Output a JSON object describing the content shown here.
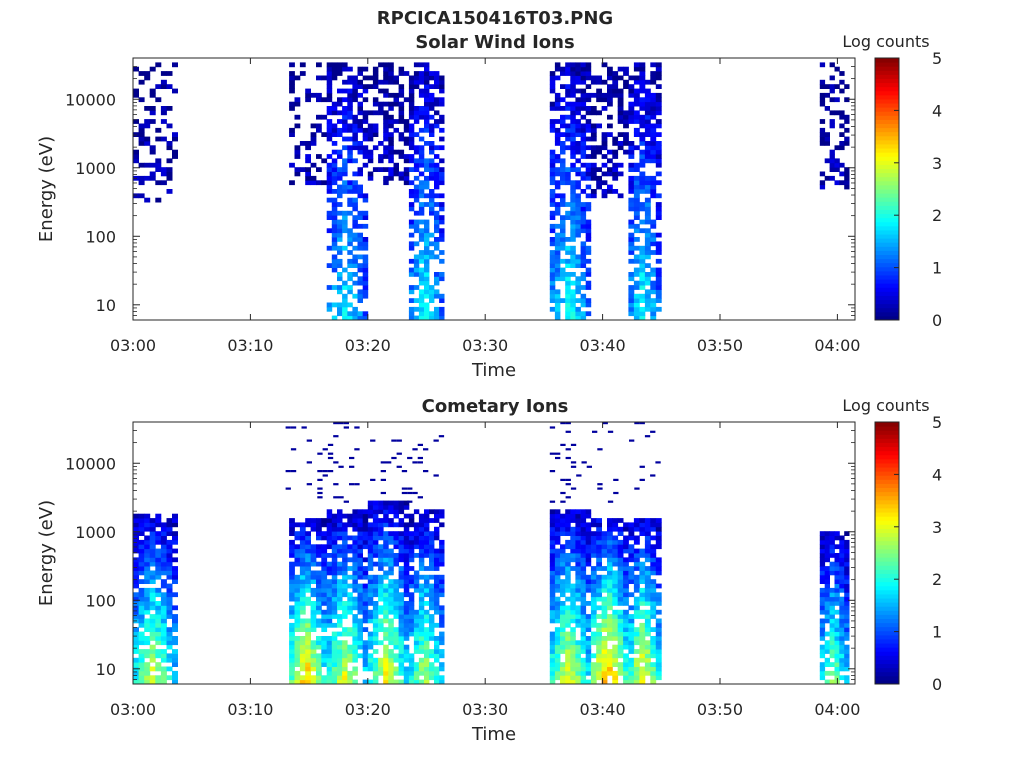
{
  "figure": {
    "title": "RPCICA150416T03.PNG"
  },
  "chart_data": [
    {
      "type": "heatmap",
      "title": "Solar Wind Ions",
      "xlabel": "Time",
      "ylabel": "Energy (eV)",
      "x_ticks": [
        "03:00",
        "03:10",
        "03:20",
        "03:30",
        "03:40",
        "03:50",
        "04:00"
      ],
      "x_range_minutes": [
        0,
        61.5
      ],
      "y_scale": "log",
      "y_ticks": [
        {
          "value": 10,
          "label": "10"
        },
        {
          "value": 100,
          "label": "100"
        },
        {
          "value": 1000,
          "label": "1000"
        },
        {
          "value": 10000,
          "label": "10000"
        }
      ],
      "ylim": [
        6,
        40000
      ],
      "colorbar": {
        "label": "Log counts",
        "range": [
          0,
          5
        ],
        "ticks": [
          "0",
          "1",
          "2",
          "3",
          "4",
          "5"
        ]
      },
      "bursts": [
        {
          "start": 0.0,
          "end": 3.8,
          "emin": 330,
          "emax": 30000,
          "peak": 0.3,
          "density": 0.35
        },
        {
          "start": 13.3,
          "end": 16.5,
          "emin": 600,
          "emax": 30000,
          "peak": 0.3,
          "density": 0.3
        },
        {
          "start": 16.5,
          "end": 20.0,
          "emin": 6,
          "emax": 30000,
          "peak": 1.9,
          "density": 0.6
        },
        {
          "start": 20.0,
          "end": 23.5,
          "emin": 600,
          "emax": 30000,
          "peak": 0.4,
          "density": 0.5
        },
        {
          "start": 23.5,
          "end": 26.5,
          "emin": 6,
          "emax": 30000,
          "peak": 2.0,
          "density": 0.65
        },
        {
          "start": 35.5,
          "end": 39.0,
          "emin": 6,
          "emax": 30000,
          "peak": 2.0,
          "density": 0.7
        },
        {
          "start": 39.0,
          "end": 42.2,
          "emin": 400,
          "emax": 30000,
          "peak": 0.4,
          "density": 0.5
        },
        {
          "start": 42.2,
          "end": 45.0,
          "emin": 6,
          "emax": 30000,
          "peak": 2.0,
          "density": 0.7
        },
        {
          "start": 58.5,
          "end": 61.0,
          "emin": 500,
          "emax": 30000,
          "peak": 0.3,
          "density": 0.35
        }
      ]
    },
    {
      "type": "heatmap",
      "title": "Cometary Ions",
      "xlabel": "Time",
      "ylabel": "Energy (eV)",
      "x_ticks": [
        "03:00",
        "03:10",
        "03:20",
        "03:30",
        "03:40",
        "03:50",
        "04:00"
      ],
      "x_range_minutes": [
        0,
        61.5
      ],
      "y_scale": "log",
      "y_ticks": [
        {
          "value": 10,
          "label": "10"
        },
        {
          "value": 100,
          "label": "100"
        },
        {
          "value": 1000,
          "label": "1000"
        },
        {
          "value": 10000,
          "label": "10000"
        }
      ],
      "ylim": [
        6,
        40000
      ],
      "colorbar": {
        "label": "Log counts",
        "range": [
          0,
          5
        ],
        "ticks": [
          "0",
          "1",
          "2",
          "3",
          "4",
          "5"
        ]
      },
      "bursts": [
        {
          "start": 0.0,
          "end": 3.8,
          "emin": 6,
          "emax": 1800,
          "peak": 3.0,
          "density": 0.85
        },
        {
          "start": 13.3,
          "end": 16.5,
          "emin": 6,
          "emax": 1500,
          "peak": 3.6,
          "density": 0.85
        },
        {
          "start": 16.5,
          "end": 20.0,
          "emin": 6,
          "emax": 2000,
          "peak": 3.1,
          "density": 0.8
        },
        {
          "start": 20.0,
          "end": 23.5,
          "emin": 6,
          "emax": 2500,
          "peak": 3.2,
          "density": 0.8
        },
        {
          "start": 23.5,
          "end": 26.5,
          "emin": 6,
          "emax": 2000,
          "peak": 2.9,
          "density": 0.75
        },
        {
          "start": 35.5,
          "end": 39.0,
          "emin": 6,
          "emax": 2000,
          "peak": 3.2,
          "density": 0.85
        },
        {
          "start": 39.0,
          "end": 42.2,
          "emin": 6,
          "emax": 1500,
          "peak": 3.9,
          "density": 0.85
        },
        {
          "start": 42.2,
          "end": 45.0,
          "emin": 6,
          "emax": 1500,
          "peak": 3.4,
          "density": 0.8
        },
        {
          "start": 58.5,
          "end": 61.0,
          "emin": 6,
          "emax": 900,
          "peak": 2.7,
          "density": 0.85
        }
      ],
      "sparse_high_energy": [
        {
          "start": 13.0,
          "end": 26.5,
          "emin": 2500,
          "emax": 35000
        },
        {
          "start": 35.5,
          "end": 45.0,
          "emin": 2500,
          "emax": 35000
        }
      ]
    }
  ]
}
